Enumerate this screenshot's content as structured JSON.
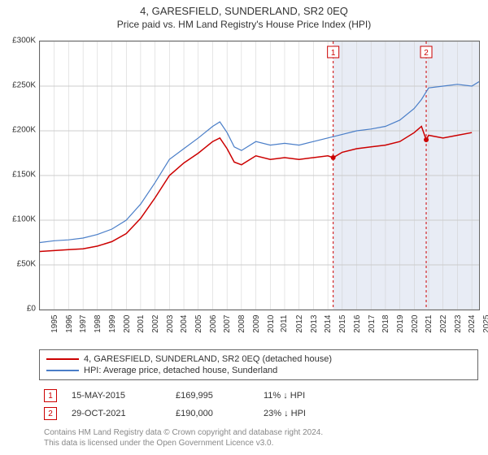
{
  "title": "4, GARESFIELD, SUNDERLAND, SR2 0EQ",
  "subtitle": "Price paid vs. HM Land Registry's House Price Index (HPI)",
  "chart": {
    "type": "line",
    "background_color": "#ffffff",
    "grid_color": "#cccccc",
    "border_color": "#666666",
    "ylim": [
      0,
      300000
    ],
    "ytick_step": 50000,
    "ytick_labels": [
      "£0",
      "£50K",
      "£100K",
      "£150K",
      "£200K",
      "£250K",
      "£300K"
    ],
    "xlim": [
      1995,
      2025.5
    ],
    "xtick_step": 1,
    "xtick_labels": [
      "1995",
      "1996",
      "1997",
      "1998",
      "1999",
      "2000",
      "2001",
      "2002",
      "2003",
      "2004",
      "2005",
      "2006",
      "2007",
      "2008",
      "2009",
      "2010",
      "2011",
      "2012",
      "2013",
      "2014",
      "2015",
      "2016",
      "2017",
      "2018",
      "2019",
      "2020",
      "2021",
      "2022",
      "2023",
      "2024",
      "2025"
    ],
    "label_fontsize": 10,
    "title_fontsize": 13,
    "series": [
      {
        "name": "property",
        "label": "4, GARESFIELD, SUNDERLAND, SR2 0EQ (detached house)",
        "color": "#cc0000",
        "line_width": 1.5,
        "points": [
          [
            1995,
            65000
          ],
          [
            1996,
            66000
          ],
          [
            1997,
            67000
          ],
          [
            1998,
            68000
          ],
          [
            1999,
            71000
          ],
          [
            2000,
            76000
          ],
          [
            2001,
            85000
          ],
          [
            2002,
            102000
          ],
          [
            2003,
            125000
          ],
          [
            2004,
            150000
          ],
          [
            2005,
            164000
          ],
          [
            2006,
            175000
          ],
          [
            2007,
            188000
          ],
          [
            2007.5,
            192000
          ],
          [
            2008,
            180000
          ],
          [
            2008.5,
            165000
          ],
          [
            2009,
            162000
          ],
          [
            2010,
            172000
          ],
          [
            2011,
            168000
          ],
          [
            2012,
            170000
          ],
          [
            2013,
            168000
          ],
          [
            2014,
            170000
          ],
          [
            2015,
            172000
          ],
          [
            2015.37,
            169995
          ],
          [
            2016,
            176000
          ],
          [
            2017,
            180000
          ],
          [
            2018,
            182000
          ],
          [
            2019,
            184000
          ],
          [
            2020,
            188000
          ],
          [
            2021,
            198000
          ],
          [
            2021.5,
            205000
          ],
          [
            2021.83,
            190000
          ],
          [
            2022,
            195000
          ],
          [
            2023,
            192000
          ],
          [
            2024,
            195000
          ],
          [
            2025,
            198000
          ]
        ]
      },
      {
        "name": "hpi",
        "label": "HPI: Average price, detached house, Sunderland",
        "color": "#4a7ec8",
        "line_width": 1.2,
        "points": [
          [
            1995,
            75000
          ],
          [
            1996,
            77000
          ],
          [
            1997,
            78000
          ],
          [
            1998,
            80000
          ],
          [
            1999,
            84000
          ],
          [
            2000,
            90000
          ],
          [
            2001,
            100000
          ],
          [
            2002,
            118000
          ],
          [
            2003,
            142000
          ],
          [
            2004,
            168000
          ],
          [
            2005,
            180000
          ],
          [
            2006,
            192000
          ],
          [
            2007,
            205000
          ],
          [
            2007.5,
            210000
          ],
          [
            2008,
            198000
          ],
          [
            2008.5,
            182000
          ],
          [
            2009,
            178000
          ],
          [
            2010,
            188000
          ],
          [
            2011,
            184000
          ],
          [
            2012,
            186000
          ],
          [
            2013,
            184000
          ],
          [
            2014,
            188000
          ],
          [
            2015,
            192000
          ],
          [
            2016,
            196000
          ],
          [
            2017,
            200000
          ],
          [
            2018,
            202000
          ],
          [
            2019,
            205000
          ],
          [
            2020,
            212000
          ],
          [
            2021,
            225000
          ],
          [
            2021.5,
            235000
          ],
          [
            2022,
            248000
          ],
          [
            2023,
            250000
          ],
          [
            2024,
            252000
          ],
          [
            2025,
            250000
          ],
          [
            2025.5,
            255000
          ]
        ]
      }
    ],
    "sale_markers": [
      {
        "number": "1",
        "year": 2015.37,
        "value": 169995,
        "color": "#cc0000",
        "area_color": "#e8ecf5"
      },
      {
        "number": "2",
        "year": 2021.83,
        "value": 190000,
        "color": "#cc0000",
        "area_color": "#e8ecf5"
      }
    ]
  },
  "sales": [
    {
      "number": "1",
      "date": "15-MAY-2015",
      "price": "£169,995",
      "diff": "11% ↓ HPI",
      "badge_color": "#cc0000"
    },
    {
      "number": "2",
      "date": "29-OCT-2021",
      "price": "£190,000",
      "diff": "23% ↓ HPI",
      "badge_color": "#cc0000"
    }
  ],
  "attribution_line1": "Contains HM Land Registry data © Crown copyright and database right 2024.",
  "attribution_line2": "This data is licensed under the Open Government Licence v3.0."
}
